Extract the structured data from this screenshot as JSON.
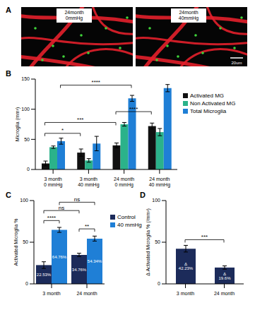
{
  "image_panel": {
    "panel": "A",
    "images": [
      {
        "caption": "24month\n0mmHg"
      },
      {
        "caption": "24month\n40mmHg"
      }
    ],
    "scale_bar": "20um"
  },
  "chart_data": [
    {
      "panel": "B",
      "type": "bar",
      "y_label": "Microglia (mm²)",
      "categories": [
        "3 month\n0 mmHg",
        "3 month\n40 mmHg",
        "24 month\n0 mmHg",
        "24 month\n40 mmHg"
      ],
      "series": [
        {
          "name": "Activated MG",
          "color": "#111111",
          "values": [
            10,
            28,
            40,
            72
          ],
          "errors": [
            4,
            6,
            4,
            5
          ]
        },
        {
          "name": "Non Activated MG",
          "color": "#2bb28a",
          "values": [
            37,
            15,
            75,
            62
          ],
          "errors": [
            2,
            3,
            3,
            6
          ]
        },
        {
          "name": "Total Microglia",
          "color": "#1f7fd6",
          "values": [
            47,
            43,
            118,
            135
          ],
          "errors": [
            5,
            12,
            5,
            6
          ]
        }
      ],
      "ylim": [
        0,
        150
      ],
      "yticks": [
        0,
        50,
        100,
        150
      ],
      "legend": "right",
      "annotations": [
        {
          "text": "*",
          "from": {
            "category": "3 month\n0 mmHg",
            "series": "Activated MG"
          },
          "to": {
            "category": "3 month\n40 mmHg",
            "series": "Activated MG"
          },
          "y": 60
        },
        {
          "text": "***",
          "from": {
            "category": "3 month\n0 mmHg",
            "series": "Activated MG"
          },
          "to": {
            "category": "24 month\n0 mmHg",
            "series": "Activated MG"
          },
          "y": 78
        },
        {
          "text": "****",
          "from": {
            "category": "3 month\n0 mmHg",
            "series": "Total Microglia"
          },
          "to": {
            "category": "24 month\n0 mmHg",
            "series": "Total Microglia"
          },
          "y": 140
        },
        {
          "text": "****",
          "from": {
            "category": "24 month\n0 mmHg",
            "series": "Activated MG"
          },
          "to": {
            "category": "24 month\n40 mmHg",
            "series": "Activated MG"
          },
          "y": 96
        }
      ]
    },
    {
      "panel": "C",
      "type": "bar",
      "y_label": "Activated Microglia %",
      "categories": [
        "3 month",
        "24 month"
      ],
      "series": [
        {
          "name": "Control",
          "color": "#1c2b5a",
          "values": [
            22.53,
            34.76
          ],
          "value_labels": [
            "22.53%",
            "34.76%"
          ],
          "errors": [
            4,
            2
          ]
        },
        {
          "name": "40 mmHg",
          "color": "#1f7fd6",
          "values": [
            64.76,
            54.34
          ],
          "value_labels": [
            "64.76%",
            "54.34%"
          ],
          "errors": [
            3,
            3
          ]
        }
      ],
      "ylim": [
        0,
        100
      ],
      "yticks": [
        0,
        50,
        100
      ],
      "data_labels": true,
      "legend": "right",
      "annotations": [
        {
          "text": "****",
          "from": {
            "category": "3 month",
            "series": "Control"
          },
          "to": {
            "category": "3 month",
            "series": "40 mmHg"
          },
          "y": 76
        },
        {
          "text": "**",
          "from": {
            "category": "24 month",
            "series": "Control"
          },
          "to": {
            "category": "24 month",
            "series": "40 mmHg"
          },
          "y": 66
        },
        {
          "text": "ns",
          "from": {
            "category": "3 month",
            "series": "Control"
          },
          "to": {
            "category": "24 month",
            "series": "Control"
          },
          "y": 88
        },
        {
          "text": "ns",
          "from": {
            "category": "3 month",
            "series": "40 mmHg"
          },
          "to": {
            "category": "24 month",
            "series": "40 mmHg"
          },
          "y": 98
        }
      ]
    },
    {
      "panel": "D",
      "type": "bar",
      "y_label": "Δ Activated Microglia % (/mm²)",
      "categories": [
        "3 month",
        "24 month"
      ],
      "values": [
        42.23,
        19.6
      ],
      "value_labels": [
        "Δ 42.23%",
        "Δ 19.6%"
      ],
      "errors": [
        4,
        2
      ],
      "color": "#1c2b5a",
      "ylim": [
        0,
        100
      ],
      "yticks": [
        0,
        50,
        100
      ],
      "data_labels": true,
      "annotations": [
        {
          "text": "***",
          "from": {
            "category": "3 month"
          },
          "to": {
            "category": "24 month"
          },
          "y": 53
        }
      ]
    }
  ]
}
